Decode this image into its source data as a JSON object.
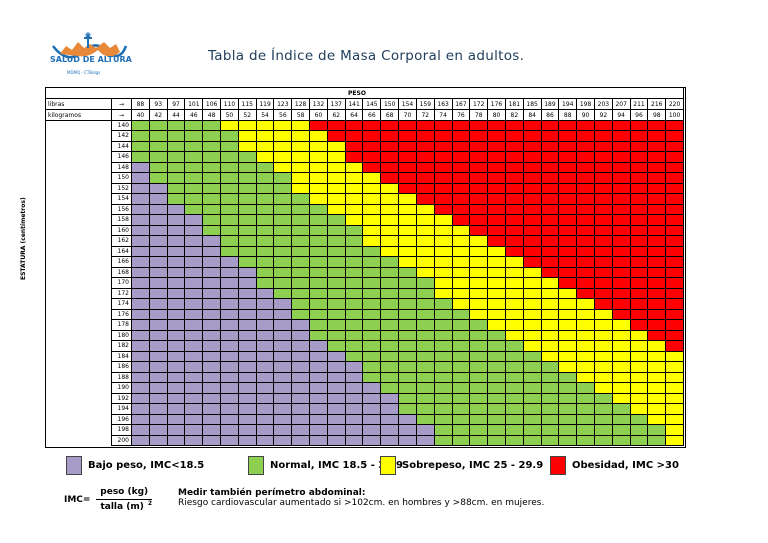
{
  "logo": {
    "name": "SALUD DE ALTURA",
    "sub": "MDMQ - CTBolgs"
  },
  "title": "Tabla de Índice de Masa Corporal en adultos.",
  "header": {
    "peso": "PESO",
    "libras_label": "libras",
    "kg_label": "kilogramos",
    "arrow": "→"
  },
  "y_label": "ESTATURA (centímetros)",
  "libras": [
    "88",
    "93",
    "97",
    "101",
    "106",
    "110",
    "115",
    "119",
    "123",
    "128",
    "132",
    "137",
    "141",
    "145",
    "150",
    "154",
    "159",
    "163",
    "167",
    "172",
    "176",
    "181",
    "185",
    "189",
    "194",
    "198",
    "203",
    "207",
    "211",
    "216",
    "220"
  ],
  "kilogramos": [
    40,
    42,
    44,
    46,
    48,
    50,
    52,
    54,
    56,
    58,
    60,
    62,
    64,
    66,
    68,
    70,
    72,
    74,
    76,
    78,
    80,
    82,
    84,
    86,
    88,
    90,
    92,
    94,
    96,
    98,
    100
  ],
  "estatura": [
    140,
    142,
    144,
    146,
    148,
    150,
    152,
    154,
    156,
    158,
    160,
    162,
    164,
    166,
    168,
    170,
    172,
    174,
    176,
    178,
    180,
    182,
    184,
    186,
    188,
    190,
    192,
    194,
    196,
    198,
    200
  ],
  "categories": [
    {
      "label": "Bajo peso, IMC<18.5",
      "color": "#a79bc8",
      "max": 18.5
    },
    {
      "label": "Normal, IMC 18.5 - 24.9",
      "color": "#8dcf50",
      "max": 25
    },
    {
      "label": "Sobrepeso, IMC 25 - 29.9",
      "color": "#ffff00",
      "max": 30
    },
    {
      "label": "Obesidad, IMC >30",
      "color": "#ff0000",
      "max": 999
    }
  ],
  "formula": {
    "prefix": "IMC=",
    "numerator": "peso (kg)",
    "denominator": "talla (m)",
    "exp": "2"
  },
  "note": {
    "title": "Medir también perímetro abdominal:",
    "text": "Riesgo cardiovascular aumentado si >102cm. en hombres y >88cm. en mujeres."
  }
}
